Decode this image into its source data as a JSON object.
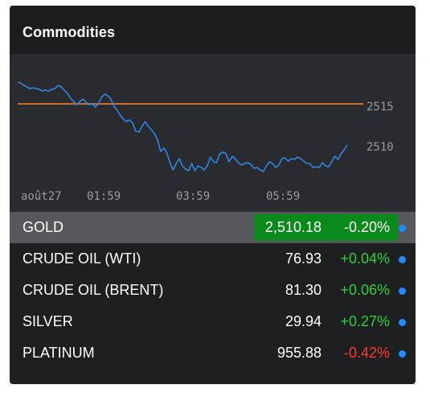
{
  "widget": {
    "title": "Commodities"
  },
  "chart_data": {
    "type": "line",
    "series": [
      {
        "values": [
          2518.0,
          2517.9,
          2517.6,
          2517.4,
          2517.2,
          2517.3,
          2517.2,
          2517.1,
          2516.9,
          2517.0,
          2516.9,
          2517.1,
          2517.2,
          2517.6,
          2517.4,
          2517.0,
          2516.6,
          2516.0,
          2515.6,
          2515.2,
          2515.6,
          2515.9,
          2515.5,
          2515.2,
          2515.3,
          2514.9,
          2515.4,
          2516.1,
          2516.5,
          2516.3,
          2515.9,
          2515.0,
          2514.5,
          2513.9,
          2513.4,
          2513.1,
          2513.3,
          2512.9,
          2511.9,
          2511.8,
          2512.5,
          2513.1,
          2512.5,
          2512.1,
          2511.6,
          2510.8,
          2509.4,
          2509.8,
          2509.2,
          2508.0,
          2507.1,
          2507.9,
          2508.5,
          2507.6,
          2507.2,
          2507.0,
          2507.9,
          2507.0,
          2507.6,
          2507.4,
          2507.1,
          2507.6,
          2508.7,
          2508.1,
          2508.0,
          2509.1,
          2509.3,
          2509.1,
          2508.1,
          2508.8,
          2508.5,
          2508.0,
          2507.7,
          2507.9,
          2508.0,
          2507.8,
          2507.3,
          2507.4,
          2507.1,
          2506.9,
          2507.6,
          2508.1,
          2507.9,
          2507.4,
          2507.7,
          2508.5,
          2508.6,
          2508.2,
          2508.5,
          2508.4,
          2508.7,
          2508.5,
          2508.2,
          2507.9,
          2507.9,
          2507.4,
          2507.5,
          2507.4,
          2508.0,
          2507.6,
          2507.5,
          2508.1,
          2508.8,
          2508.4,
          2509.1,
          2509.6,
          2510.2
        ]
      }
    ],
    "reference_line": 2515.3,
    "ylim": [
      2505.5,
      2519.5
    ],
    "yticks": [
      2510,
      2515
    ],
    "ytick_labels": [
      "2510",
      "2515"
    ],
    "xtick_labels": [
      "août27",
      "01:59",
      "03:59",
      "05:59"
    ],
    "colors": {
      "line": "#2f86e8",
      "reference": "#c8702a",
      "axis_text": "#9a9ca0"
    }
  },
  "rows": [
    {
      "name": "GOLD",
      "price": "2,510.18",
      "change": "-0.20%",
      "direction": "neg",
      "selected": true
    },
    {
      "name": "CRUDE OIL (WTI)",
      "price": "76.93",
      "change": "+0.04%",
      "direction": "pos",
      "selected": false
    },
    {
      "name": "CRUDE OIL (BRENT)",
      "price": "81.30",
      "change": "+0.06%",
      "direction": "pos",
      "selected": false
    },
    {
      "name": "SILVER",
      "price": "29.94",
      "change": "+0.27%",
      "direction": "pos",
      "selected": false
    },
    {
      "name": "PLATINUM",
      "price": "955.88",
      "change": "-0.42%",
      "direction": "neg",
      "selected": false
    }
  ],
  "colors": {
    "positive": "#2fd03a",
    "negative": "#ff3b30",
    "selected_bg": "#0a8a1a",
    "dot": "#1f8bff"
  }
}
